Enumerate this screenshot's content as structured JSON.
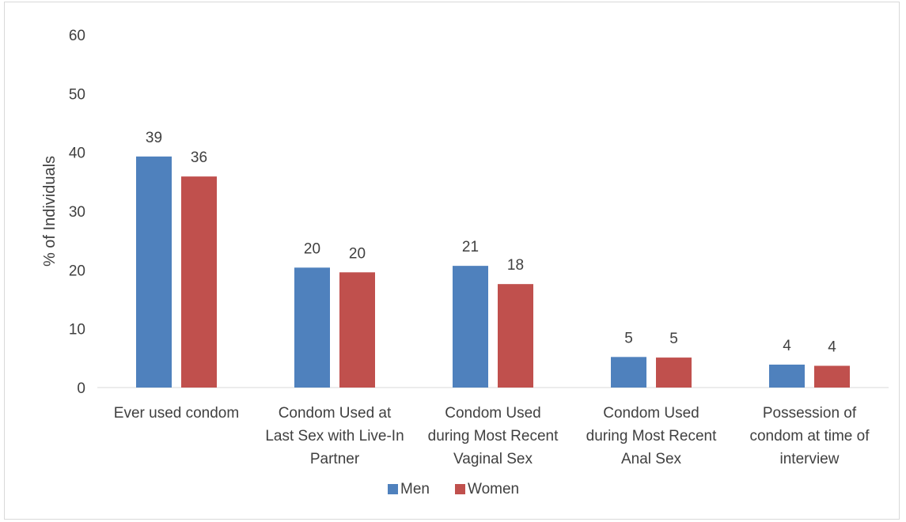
{
  "chart_data": {
    "type": "bar",
    "title": "",
    "xlabel": "",
    "ylabel": "% of Individuals",
    "ylim": [
      0,
      60
    ],
    "yticks": [
      0,
      10,
      20,
      30,
      40,
      50,
      60
    ],
    "grid": false,
    "legend_position": "bottom",
    "categories": [
      [
        "Ever used condom"
      ],
      [
        "Condom Used at",
        "Last Sex with Live-In",
        "Partner"
      ],
      [
        "Condom Used",
        "during Most Recent",
        "Vaginal Sex"
      ],
      [
        "Condom Used",
        "during Most Recent",
        "Anal Sex"
      ],
      [
        "Possession of",
        "condom at time of",
        "interview"
      ]
    ],
    "series": [
      {
        "name": "Men",
        "color": "#4f81bd",
        "values": [
          39.3,
          20.4,
          20.7,
          5.2,
          3.9
        ],
        "labels": [
          "39",
          "20",
          "21",
          "5",
          "4"
        ]
      },
      {
        "name": "Women",
        "color": "#c0504d",
        "values": [
          35.9,
          19.6,
          17.6,
          5.1,
          3.7
        ],
        "labels": [
          "36",
          "20",
          "18",
          "5",
          "4"
        ]
      }
    ]
  }
}
